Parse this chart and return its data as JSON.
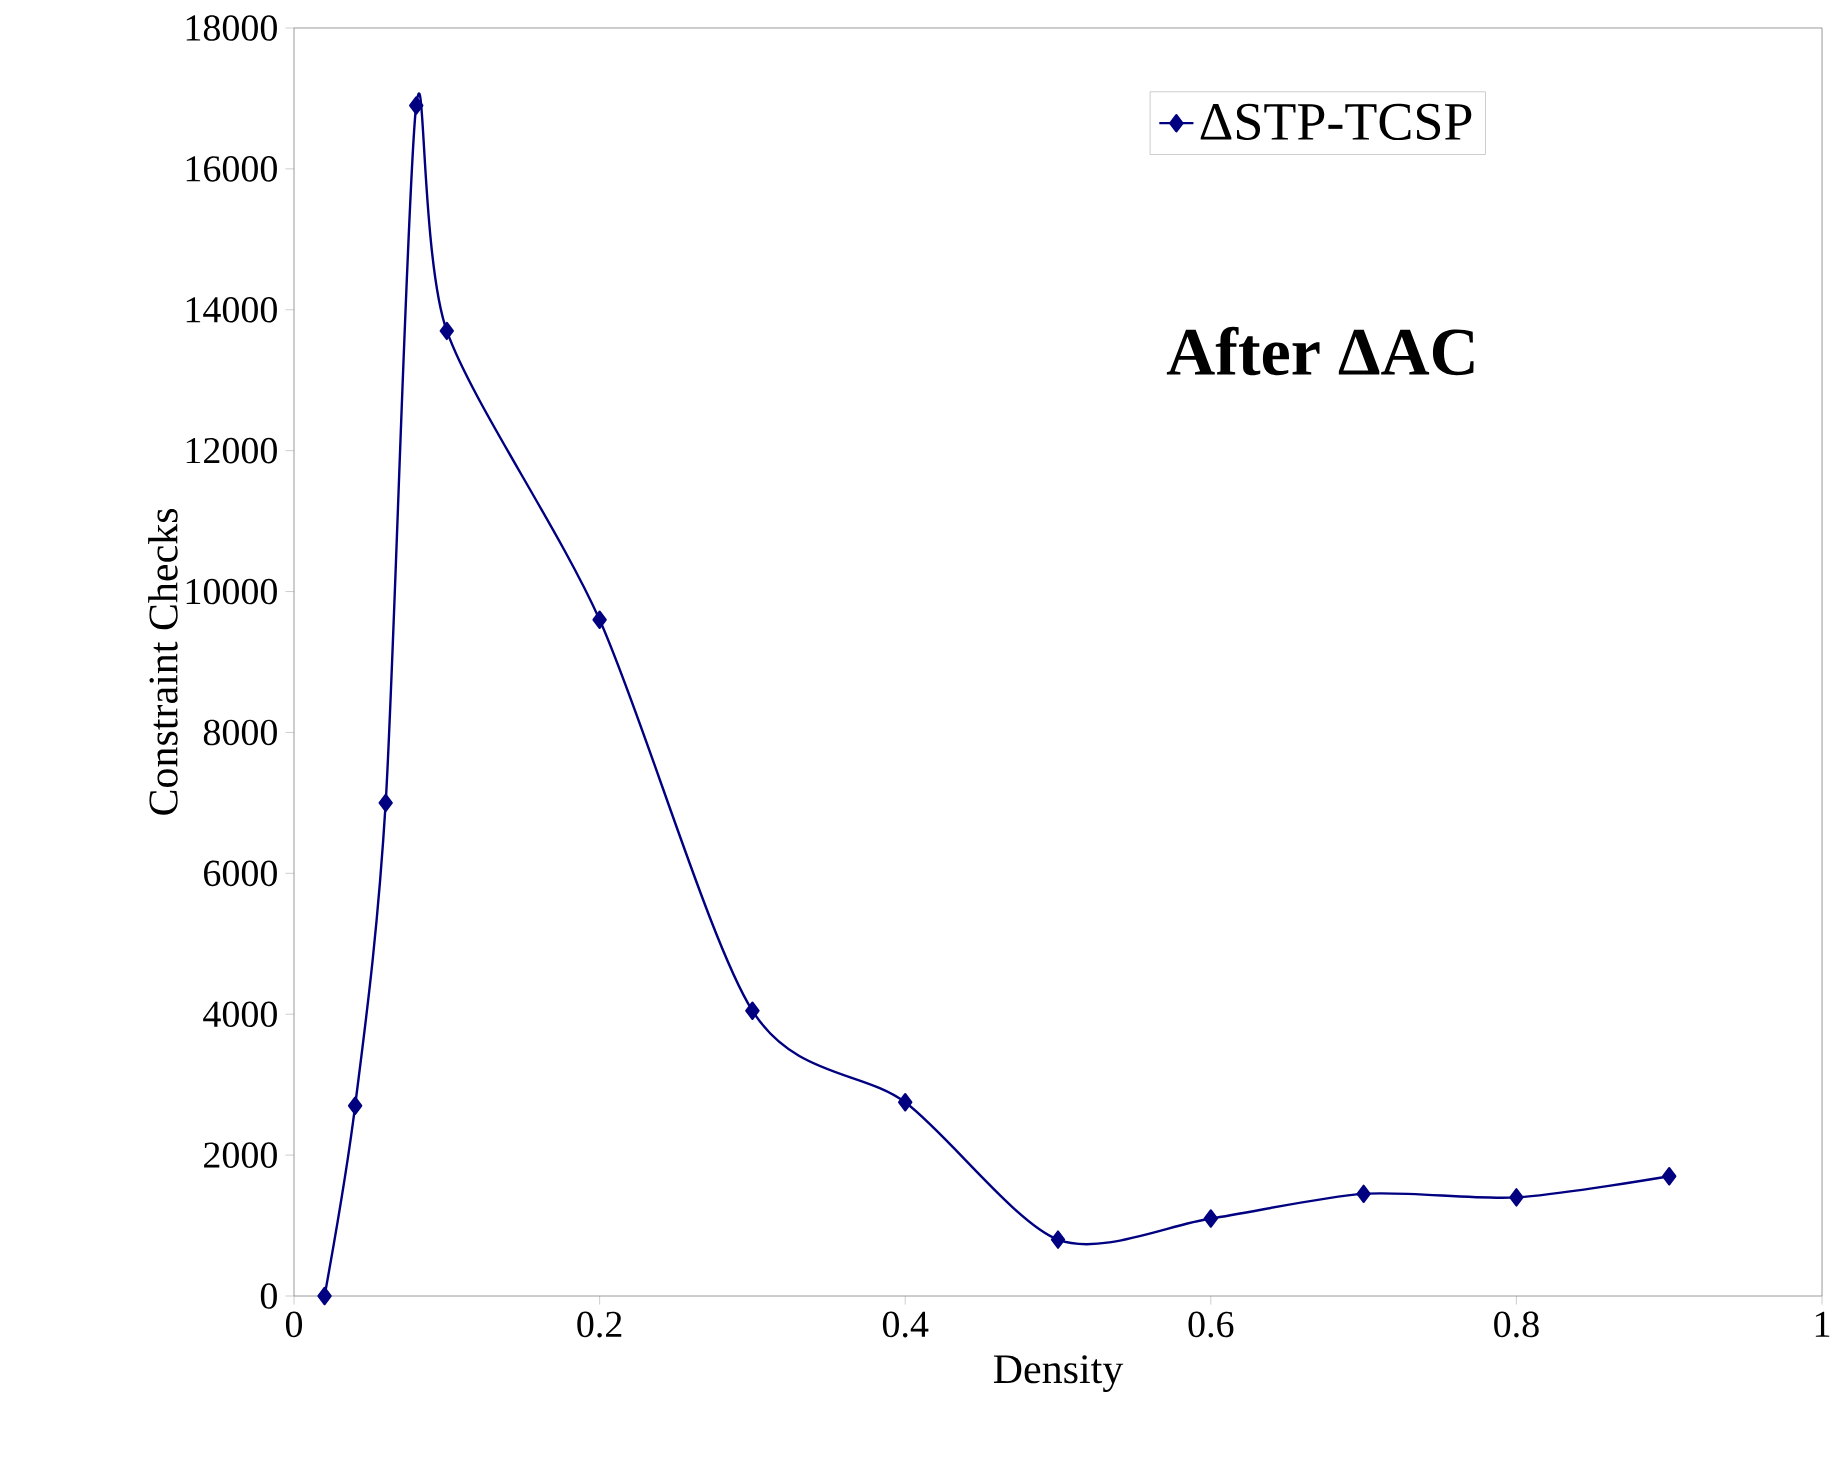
{
  "chart_data": {
    "type": "line",
    "xlabel": "Density",
    "ylabel": "Constraint Checks",
    "annotations": [
      "After ΔAC"
    ],
    "x": [
      0.02,
      0.04,
      0.06,
      0.08,
      0.1,
      0.2,
      0.3,
      0.4,
      0.5,
      0.6,
      0.7,
      0.8,
      0.9
    ],
    "series": [
      {
        "name": "ΔSTP-TCSP",
        "color": "#000080",
        "values": [
          0,
          2700,
          7000,
          16900,
          13700,
          9600,
          4050,
          2750,
          800,
          1100,
          1450,
          1400,
          1700
        ]
      }
    ],
    "xlim": [
      0,
      1
    ],
    "xticks": [
      0,
      0.2,
      0.4,
      0.6,
      0.8,
      1
    ],
    "ylim": [
      0,
      18000
    ],
    "yticks": [
      0,
      2000,
      4000,
      6000,
      8000,
      10000,
      12000,
      14000,
      16000,
      18000
    ],
    "grid": false,
    "legend": "top right",
    "marker": "diamond",
    "line_style": "solid"
  }
}
